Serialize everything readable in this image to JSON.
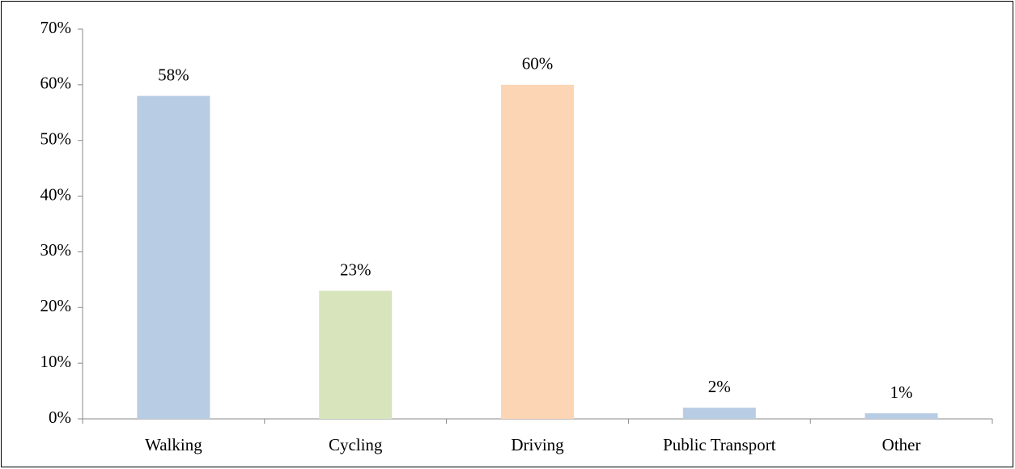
{
  "chart_data": {
    "type": "bar",
    "categories": [
      "Walking",
      "Cycling",
      "Driving",
      "Public Transport",
      "Other"
    ],
    "values": [
      58,
      23,
      60,
      2,
      1
    ],
    "value_labels": [
      "58%",
      "23%",
      "60%",
      "2%",
      "1%"
    ],
    "colors": [
      "#b8cce4",
      "#d7e4bc",
      "#fcd5b5",
      "#b8cce4",
      "#b8cce4"
    ],
    "ylim": [
      0,
      70
    ],
    "yticks": [
      {
        "value": 0,
        "label": "0%"
      },
      {
        "value": 10,
        "label": "10%"
      },
      {
        "value": 20,
        "label": "20%"
      },
      {
        "value": 30,
        "label": "30%"
      },
      {
        "value": 40,
        "label": "40%"
      },
      {
        "value": 50,
        "label": "50%"
      },
      {
        "value": 60,
        "label": "60%"
      },
      {
        "value": 70,
        "label": "70%"
      }
    ],
    "grid": false
  }
}
